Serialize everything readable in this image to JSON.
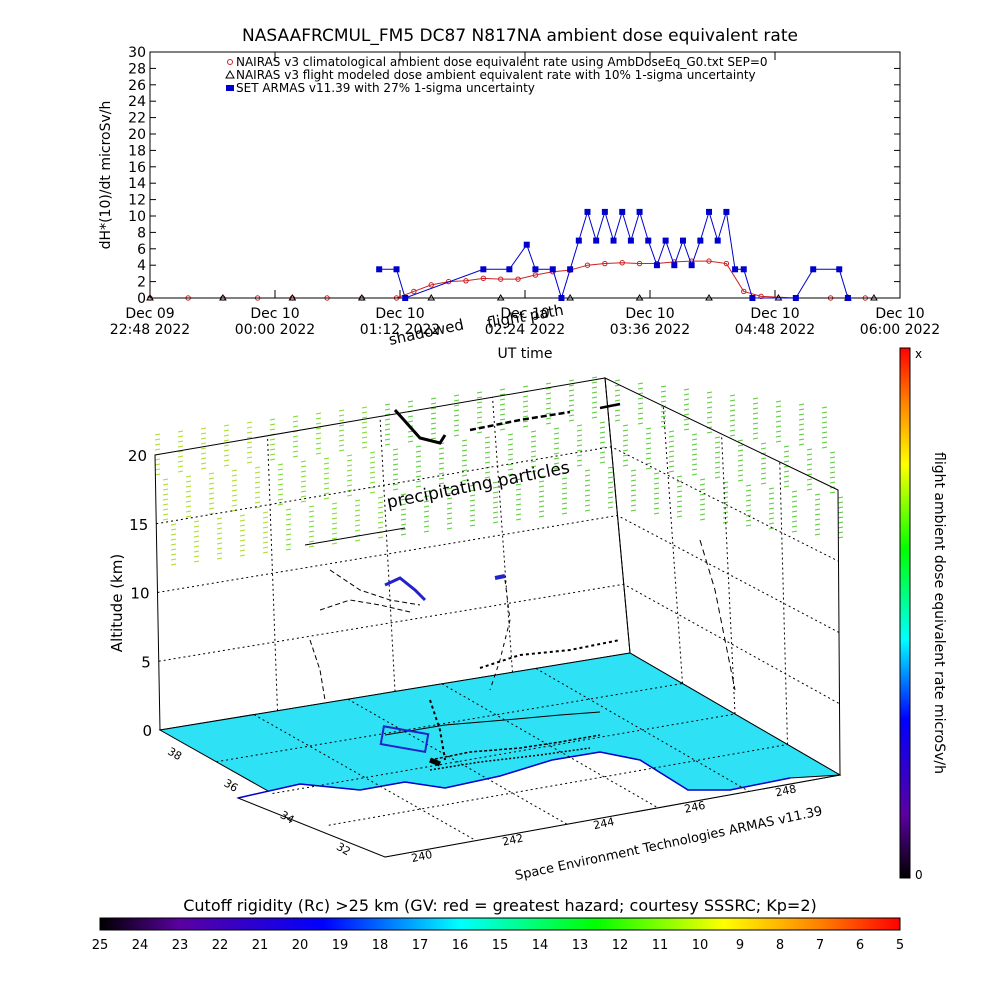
{
  "chart_data": [
    {
      "type": "scatter",
      "title": "NASAAFRCMUL_FM5 DC87 N817NA ambient dose equivalent rate",
      "xlabel": "UT time",
      "ylabel": "dH*(10)/dt microSv/h",
      "ylim": [
        0,
        30
      ],
      "y_ticks": [
        0,
        2,
        4,
        6,
        8,
        10,
        12,
        14,
        16,
        18,
        20,
        22,
        24,
        26,
        28,
        30
      ],
      "x_ticks": [
        {
          "line1": "Dec 09",
          "line2": "22:48 2022"
        },
        {
          "line1": "Dec 10",
          "line2": "00:00 2022"
        },
        {
          "line1": "Dec 10",
          "line2": "01:12 2022"
        },
        {
          "line1": "Dec 10",
          "line2": "02:24 2022"
        },
        {
          "line1": "Dec 10",
          "line2": "03:36 2022"
        },
        {
          "line1": "Dec 10",
          "line2": "04:48 2022"
        },
        {
          "line1": "Dec 10",
          "line2": "06:00 2022"
        }
      ],
      "legend_position": "top-left",
      "overlay_labels": [
        "shadowed",
        "flight path"
      ],
      "series": [
        {
          "name": "NAIRAS v3 climatological ambient dose equivalent rate using AmbDoseEq_G0.txt SEP=0",
          "color": "#cc2222",
          "marker": "circle",
          "points": [
            [
              "22:48",
              0
            ],
            [
              "23:10",
              0
            ],
            [
              "23:30",
              0
            ],
            [
              "23:50",
              0
            ],
            [
              "00:10",
              0
            ],
            [
              "00:30",
              0
            ],
            [
              "00:50",
              0
            ],
            [
              "01:10",
              0
            ],
            [
              "01:20",
              0.8
            ],
            [
              "01:30",
              1.6
            ],
            [
              "01:40",
              2.0
            ],
            [
              "01:50",
              2.1
            ],
            [
              "02:00",
              2.4
            ],
            [
              "02:10",
              2.3
            ],
            [
              "02:20",
              2.3
            ],
            [
              "02:30",
              2.8
            ],
            [
              "02:40",
              3.2
            ],
            [
              "02:50",
              3.4
            ],
            [
              "03:00",
              4.0
            ],
            [
              "03:10",
              4.2
            ],
            [
              "03:20",
              4.3
            ],
            [
              "03:30",
              4.2
            ],
            [
              "03:40",
              4.2
            ],
            [
              "03:50",
              4.4
            ],
            [
              "04:00",
              4.5
            ],
            [
              "04:10",
              4.5
            ],
            [
              "04:20",
              4.2
            ],
            [
              "04:30",
              0.8
            ],
            [
              "04:40",
              0.2
            ],
            [
              "05:00",
              0
            ],
            [
              "05:20",
              0
            ],
            [
              "05:40",
              0
            ]
          ]
        },
        {
          "name": "NAIRAS v3 flight modeled dose ambient equivalent rate with 10% 1-sigma uncertainty",
          "color": "#000000",
          "marker": "triangle",
          "points": [
            [
              "22:48",
              0
            ],
            [
              "23:30",
              0
            ],
            [
              "00:10",
              0
            ],
            [
              "00:50",
              0
            ],
            [
              "01:30",
              0
            ],
            [
              "02:10",
              0
            ],
            [
              "02:50",
              0
            ],
            [
              "03:30",
              0
            ],
            [
              "04:10",
              0
            ],
            [
              "04:50",
              0
            ],
            [
              "05:30",
              0
            ],
            [
              "05:45",
              0
            ]
          ]
        },
        {
          "name": "SET ARMAS v11.39 with 27% 1-sigma uncertainty",
          "color": "#0000cc",
          "marker": "square",
          "points": [
            [
              "01:00",
              3.5
            ],
            [
              "01:10",
              3.5
            ],
            [
              "01:15",
              0
            ],
            [
              "02:00",
              3.5
            ],
            [
              "02:15",
              3.5
            ],
            [
              "02:25",
              6.5
            ],
            [
              "02:30",
              3.5
            ],
            [
              "02:40",
              3.5
            ],
            [
              "02:45",
              0
            ],
            [
              "02:50",
              3.5
            ],
            [
              "02:55",
              7
            ],
            [
              "03:00",
              10.5
            ],
            [
              "03:05",
              7
            ],
            [
              "03:10",
              10.5
            ],
            [
              "03:15",
              7
            ],
            [
              "03:20",
              10.5
            ],
            [
              "03:25",
              7
            ],
            [
              "03:30",
              10.5
            ],
            [
              "03:35",
              7
            ],
            [
              "03:40",
              4
            ],
            [
              "03:45",
              7
            ],
            [
              "03:50",
              4
            ],
            [
              "03:55",
              7
            ],
            [
              "04:00",
              4
            ],
            [
              "04:05",
              7
            ],
            [
              "04:10",
              10.5
            ],
            [
              "04:15",
              7
            ],
            [
              "04:20",
              10.5
            ],
            [
              "04:25",
              3.5
            ],
            [
              "04:30",
              3.5
            ],
            [
              "04:35",
              0
            ],
            [
              "05:00",
              0
            ],
            [
              "05:10",
              3.5
            ],
            [
              "05:25",
              3.5
            ],
            [
              "05:30",
              0
            ]
          ]
        }
      ]
    },
    {
      "type": "scatter",
      "subtype": "3d-flight-path",
      "zlabel": "Altitude (km)",
      "z_ticks": [
        0,
        5,
        10,
        15,
        20
      ],
      "lat_ticks": [
        32,
        34,
        36,
        38
      ],
      "lon_ticks": [
        240,
        242,
        244,
        246,
        248
      ],
      "annotation": "precipitating particles",
      "credit": "Space Environment Technologies ARMAS v11.39",
      "colorbar": {
        "label": "flight ambient dose equivalent rate microSv/h",
        "top_label": "x",
        "bottom_label": "0"
      }
    },
    {
      "type": "heatmap",
      "subtype": "colorbar",
      "title": "Cutoff rigidity (Rc) >25 km (GV: red = greatest hazard; courtesy SSSRC; Kp=2)",
      "ticks": [
        25,
        24,
        23,
        22,
        21,
        20,
        19,
        18,
        17,
        16,
        15,
        14,
        13,
        12,
        11,
        10,
        9,
        8,
        7,
        6,
        5
      ]
    }
  ]
}
